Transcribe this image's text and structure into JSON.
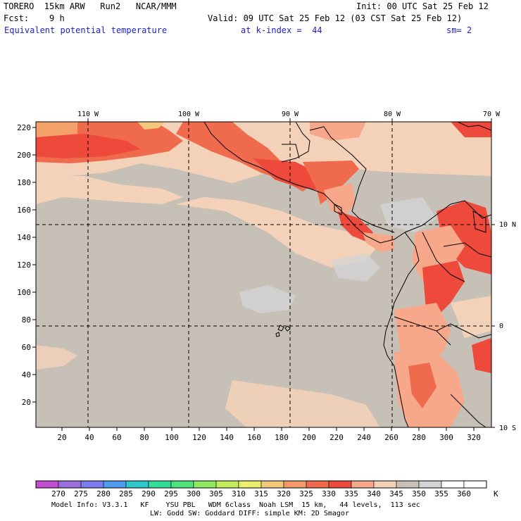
{
  "header": {
    "model_name": "TORERO  15km ARW   Run2   NCAR/MMM",
    "init": "Init: 00 UTC Sat 25 Feb 12",
    "fcst": "Fcst:    9 h",
    "valid": "Valid: 09 UTC Sat 25 Feb 12 (03 CST Sat 25 Feb 12)",
    "field": "Equivalent potential temperature",
    "level": "at k-index =  44",
    "smoothing": "sm= 2"
  },
  "map": {
    "top_lon_labels": [
      "110 W",
      "100 W",
      "90 W",
      "80 W",
      "70 W"
    ],
    "right_lat_labels": [
      "10 N",
      "0",
      "10 S"
    ],
    "y_grid_labels": [
      "220",
      "200",
      "180",
      "160",
      "140",
      "120",
      "100",
      "80",
      "60",
      "40",
      "20"
    ],
    "x_grid_labels": [
      "20",
      "40",
      "60",
      "80",
      "100",
      "120",
      "140",
      "160",
      "180",
      "200",
      "220",
      "240",
      "260",
      "280",
      "300",
      "320"
    ],
    "background_color": "#c7c0b7",
    "grid_line_color": "#000000"
  },
  "colorbar": {
    "labels": [
      "270",
      "275",
      "280",
      "285",
      "290",
      "295",
      "300",
      "305",
      "310",
      "315",
      "320",
      "325",
      "330",
      "335",
      "340",
      "345",
      "350",
      "355",
      "360"
    ],
    "unit": "K",
    "colors": [
      "#c34dd0",
      "#9b6fdc",
      "#7b7cf0",
      "#4f9bf0",
      "#2ec8c8",
      "#2fdc9a",
      "#4fe27a",
      "#8ee860",
      "#c4ec5c",
      "#f0ee6e",
      "#f4c77a",
      "#f49a6a",
      "#f06a4e",
      "#ee4a3c",
      "#f8a88a",
      "#f4d2ba",
      "#c9c1b8",
      "#d3d3d3",
      "#ffffff",
      "#ffffff"
    ]
  },
  "footer": {
    "line1": "Model Info: V3.3.1   KF    YSU PBL   WDM 6class  Noah LSM  15 km,   44 levels,  113 sec",
    "line2": "LW: Godd SW: Goddard DIFF: simple KM: 2D Smagor"
  }
}
